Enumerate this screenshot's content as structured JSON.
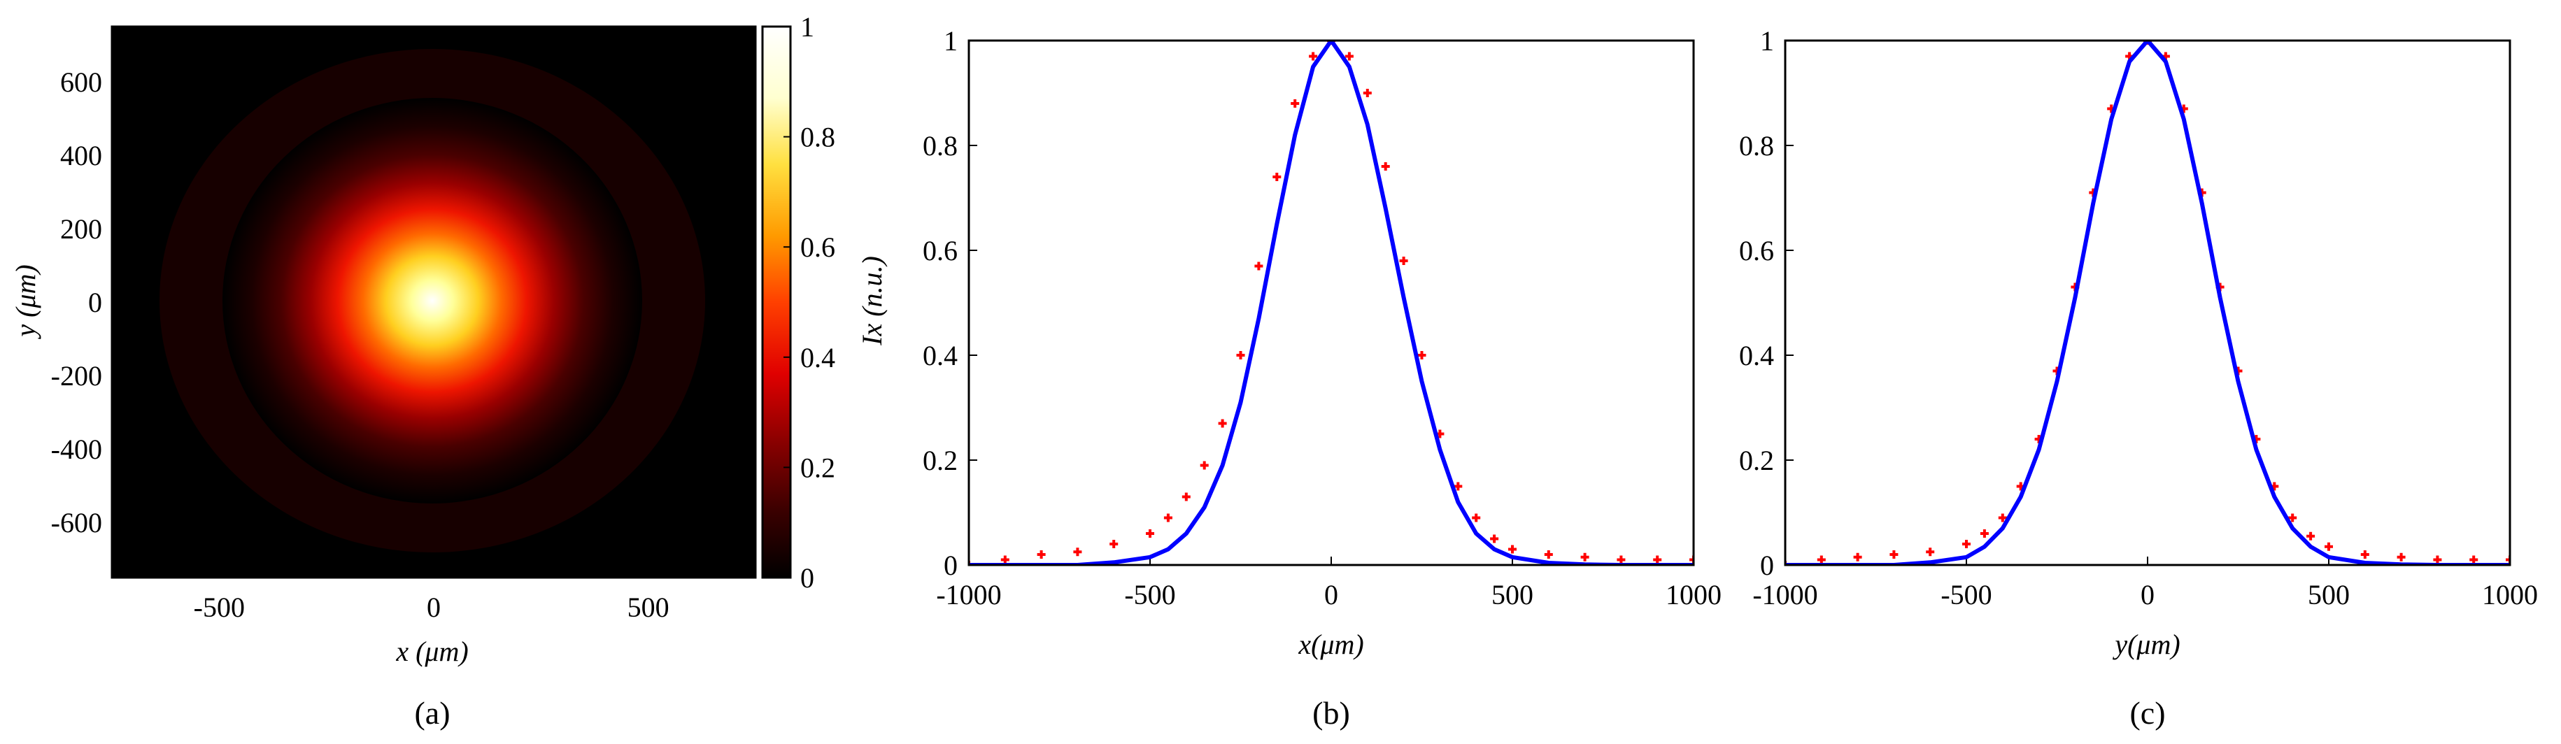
{
  "chart_data": [
    {
      "type": "heatmap",
      "caption": "(a)",
      "xlabel": "x (μm)",
      "ylabel": "y (μm)",
      "xlim": [
        -750,
        750
      ],
      "ylim": [
        -750,
        750
      ],
      "xticks": [
        -500,
        0,
        500
      ],
      "yticks": [
        600,
        400,
        200,
        0,
        -200,
        -400,
        -600
      ],
      "colorbar": {
        "range": [
          0,
          1
        ],
        "ticks": [
          "0",
          "0.2",
          "0.4",
          "0.6",
          "0.8",
          "1"
        ],
        "colormap": [
          "#000000",
          "#3a0000",
          "#8c0000",
          "#e00000",
          "#ff4000",
          "#ff9a00",
          "#ffe040",
          "#ffffd0",
          "#ffffff"
        ]
      },
      "distribution": {
        "center": [
          0,
          0
        ],
        "peak": 1.0,
        "sigma_um": 200
      }
    },
    {
      "type": "line",
      "caption": "(b)",
      "xlabel": "x(μm)",
      "ylabel": "Ix (n.u.)",
      "xlim": [
        -1000,
        1000
      ],
      "ylim": [
        0,
        1
      ],
      "xticks": [
        "-1000",
        "-500",
        "0",
        "500",
        "1000"
      ],
      "yticks": [
        "0",
        "0.2",
        "0.4",
        "0.6",
        "0.8",
        "1"
      ],
      "x": [
        -1000,
        -900,
        -800,
        -700,
        -600,
        -500,
        -450,
        -400,
        -350,
        -300,
        -250,
        -200,
        -150,
        -100,
        -50,
        0,
        50,
        100,
        150,
        200,
        250,
        300,
        350,
        400,
        450,
        500,
        600,
        700,
        800,
        900,
        1000
      ],
      "series": [
        {
          "color": "#ff0000",
          "style": "markers",
          "values": [
            0.0,
            0.01,
            0.02,
            0.025,
            0.04,
            0.06,
            0.09,
            0.13,
            0.19,
            0.27,
            0.4,
            0.57,
            0.74,
            0.88,
            0.97,
            1.0,
            0.97,
            0.9,
            0.76,
            0.58,
            0.4,
            0.25,
            0.15,
            0.09,
            0.05,
            0.03,
            0.02,
            0.015,
            0.01,
            0.01,
            0.01
          ]
        },
        {
          "color": "#0000ff",
          "style": "line",
          "values": [
            0.0,
            0.0,
            0.0,
            0.0,
            0.005,
            0.015,
            0.03,
            0.06,
            0.11,
            0.19,
            0.31,
            0.47,
            0.65,
            0.82,
            0.95,
            1.0,
            0.95,
            0.84,
            0.68,
            0.51,
            0.35,
            0.22,
            0.12,
            0.06,
            0.03,
            0.015,
            0.004,
            0.001,
            0.0,
            0.0,
            0.0
          ]
        }
      ]
    },
    {
      "type": "line",
      "caption": "(c)",
      "xlabel": "y(μm)",
      "ylabel": "",
      "xlim": [
        -1000,
        1000
      ],
      "ylim": [
        0,
        1
      ],
      "xticks": [
        "-1000",
        "-500",
        "0",
        "500",
        "1000"
      ],
      "yticks": [
        "0",
        "0.2",
        "0.4",
        "0.6",
        "0.8",
        "1"
      ],
      "x": [
        -1000,
        -900,
        -800,
        -700,
        -600,
        -500,
        -450,
        -400,
        -350,
        -300,
        -250,
        -200,
        -150,
        -100,
        -50,
        0,
        50,
        100,
        150,
        200,
        250,
        300,
        350,
        400,
        450,
        500,
        600,
        700,
        800,
        900,
        1000
      ],
      "series": [
        {
          "color": "#ff0000",
          "style": "markers",
          "values": [
            0.0,
            0.01,
            0.015,
            0.02,
            0.025,
            0.04,
            0.06,
            0.09,
            0.15,
            0.24,
            0.37,
            0.53,
            0.71,
            0.87,
            0.97,
            1.0,
            0.97,
            0.87,
            0.71,
            0.53,
            0.37,
            0.24,
            0.15,
            0.09,
            0.055,
            0.035,
            0.02,
            0.015,
            0.01,
            0.01,
            0.01
          ]
        },
        {
          "color": "#0000ff",
          "style": "line",
          "values": [
            0.0,
            0.0,
            0.0,
            0.0,
            0.005,
            0.015,
            0.035,
            0.07,
            0.13,
            0.22,
            0.35,
            0.51,
            0.69,
            0.85,
            0.96,
            1.0,
            0.96,
            0.85,
            0.69,
            0.51,
            0.35,
            0.22,
            0.13,
            0.07,
            0.035,
            0.015,
            0.004,
            0.001,
            0.0,
            0.0,
            0.0
          ]
        }
      ]
    }
  ]
}
